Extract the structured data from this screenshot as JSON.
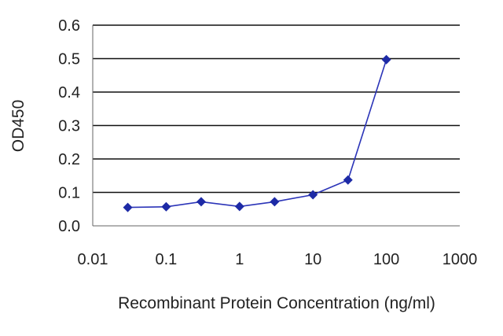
{
  "chart_data": {
    "type": "line",
    "xlabel": "Recombinant Protein Concentration (ng/ml)",
    "ylabel": "OD450",
    "x_scale": "log",
    "xlim": [
      0.01,
      1000
    ],
    "ylim": [
      0.0,
      0.6
    ],
    "x_ticks": [
      "0.01",
      "0.1",
      "1",
      "10",
      "100",
      "1000"
    ],
    "x_tick_values": [
      0.01,
      0.1,
      1,
      10,
      100,
      1000
    ],
    "y_ticks": [
      "0.0",
      "0.1",
      "0.2",
      "0.3",
      "0.4",
      "0.5",
      "0.6"
    ],
    "y_tick_values": [
      0.0,
      0.1,
      0.2,
      0.3,
      0.4,
      0.5,
      0.6
    ],
    "grid": "horizontal",
    "legend": "none",
    "series": [
      {
        "x": [
          0.03,
          0.1,
          0.3,
          1,
          3,
          10,
          30,
          100
        ],
        "y": [
          0.055,
          0.057,
          0.072,
          0.058,
          0.072,
          0.093,
          0.137,
          0.497
        ]
      }
    ],
    "colors": {
      "line": "#2b34b8",
      "marker": "#1d2aa6",
      "grid": "#111111",
      "axis": "#666666",
      "text": "#222222"
    }
  }
}
